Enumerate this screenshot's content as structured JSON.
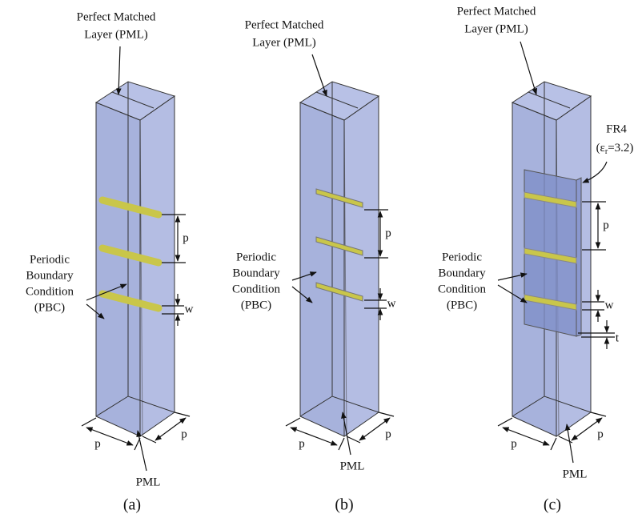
{
  "panels": [
    {
      "caption": "(a)",
      "top_label": [
        "Perfect Matched",
        "Layer (PML)"
      ],
      "side_label": [
        "Periodic",
        "Boundary",
        "Condition",
        "(PBC)"
      ],
      "bottom_label": "PML",
      "period_label": "p",
      "width_label": "w",
      "base_labels": [
        "p",
        "p"
      ]
    },
    {
      "caption": "(b)",
      "top_label": [
        "Perfect Matched",
        "Layer (PML)"
      ],
      "side_label": [
        "Periodic",
        "Boundary",
        "Condition",
        "(PBC)"
      ],
      "bottom_label": "PML",
      "period_label": "p",
      "width_label": "w",
      "base_labels": [
        "p",
        "p"
      ]
    },
    {
      "caption": "(c)",
      "top_label": [
        "Perfect Matched",
        "Layer (PML)"
      ],
      "side_label": [
        "Periodic",
        "Boundary",
        "Condition",
        "(PBC)"
      ],
      "bottom_label": "PML",
      "period_label": "p",
      "width_label": "w",
      "base_labels": [
        "p",
        "p"
      ],
      "substrate_label": "FR4",
      "permittivity": [
        "(ε",
        "r",
        "=3.2)"
      ],
      "thickness_label": "t"
    }
  ]
}
